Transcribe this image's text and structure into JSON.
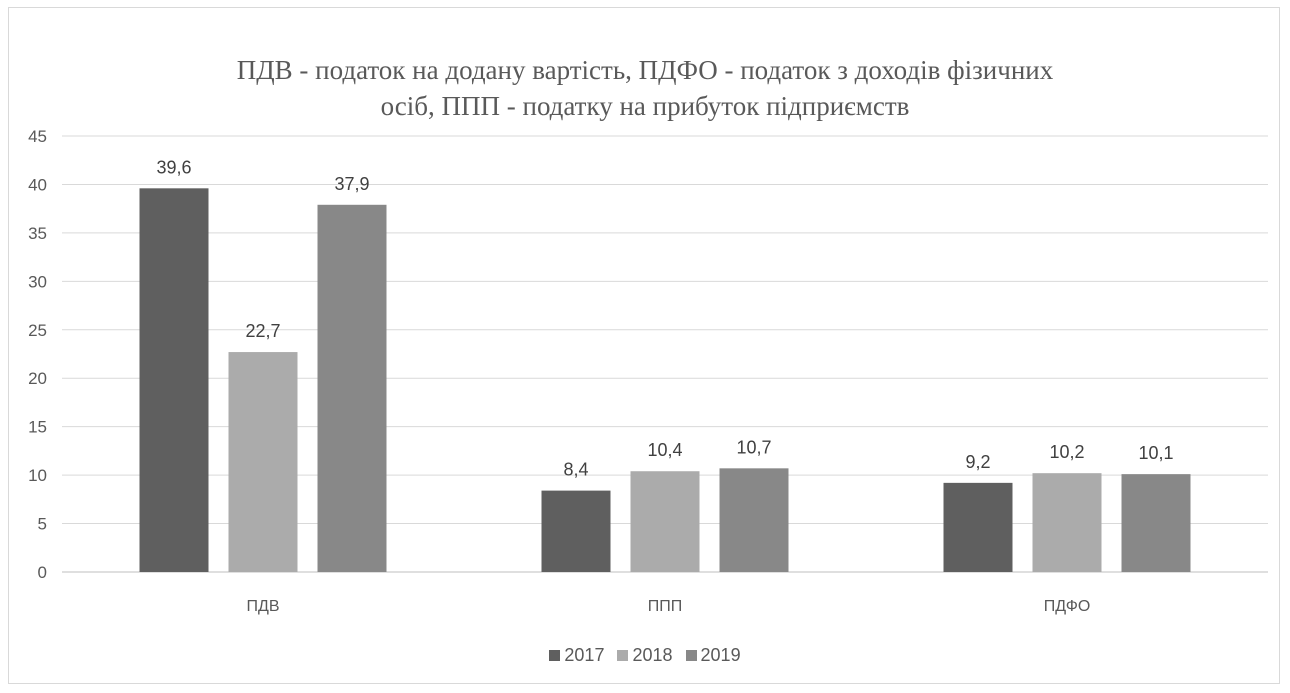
{
  "chart_data": {
    "type": "bar",
    "title_lines": [
      "ПДВ - податок на додану вартість, ПДФО - податок з доходів фізичних",
      "осіб, ППП - податку на прибуток підприємств"
    ],
    "categories": [
      "ПДВ",
      "ППП",
      "ПДФО"
    ],
    "series": [
      {
        "name": "2017",
        "values": [
          39.6,
          8.4,
          9.2
        ],
        "labels": [
          "39,6",
          "8,4",
          "9,2"
        ],
        "color": "#5f5f5f"
      },
      {
        "name": "2018",
        "values": [
          22.7,
          10.4,
          10.2
        ],
        "labels": [
          "22,7",
          "10,4",
          "10,2"
        ],
        "color": "#ababab"
      },
      {
        "name": "2019",
        "values": [
          37.9,
          10.7,
          10.1
        ],
        "labels": [
          "37,9",
          "10,7",
          "10,1"
        ],
        "color": "#888888"
      }
    ],
    "ylim": [
      0,
      45
    ],
    "yticks": [
      0,
      5,
      10,
      15,
      20,
      25,
      30,
      35,
      40,
      45
    ],
    "grid": true,
    "legend_position": "bottom",
    "gridline_color": "#d9d9d9"
  }
}
